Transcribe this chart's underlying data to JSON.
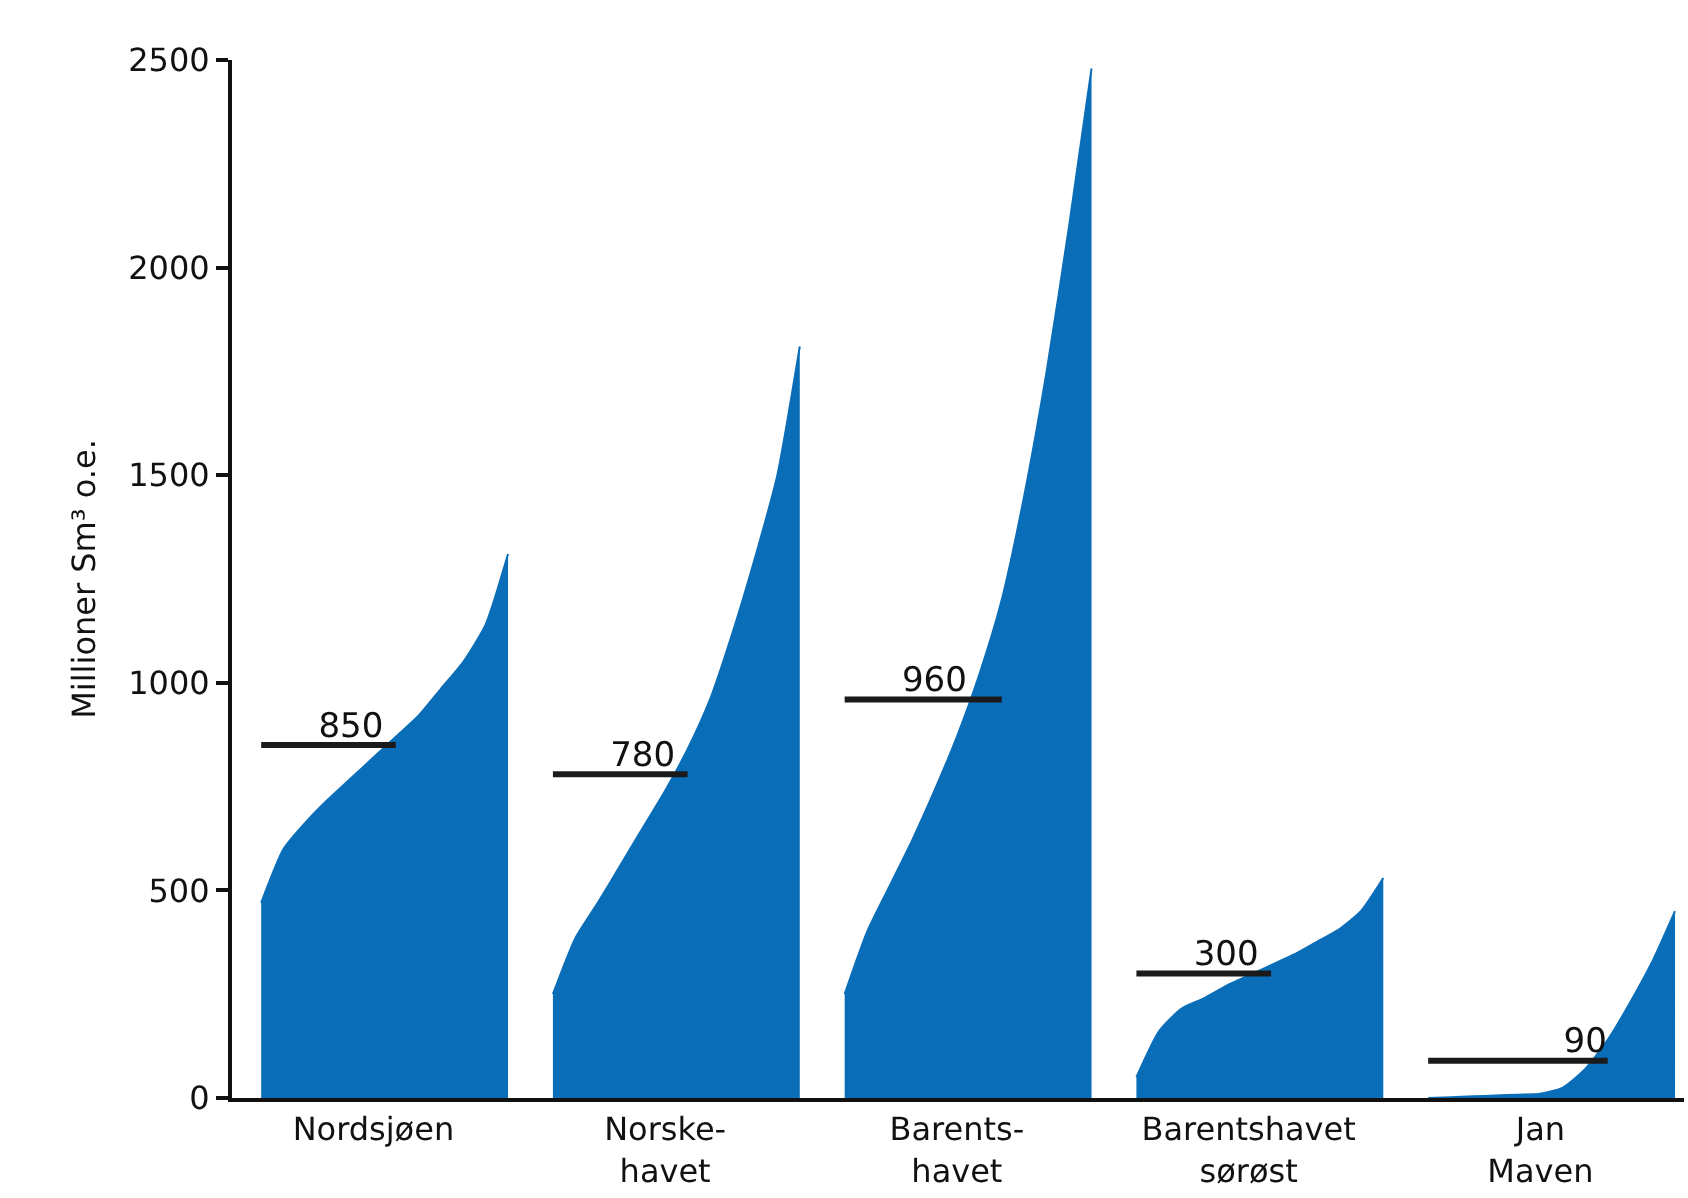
{
  "chart_data": {
    "type": "area",
    "ylabel": "Millioner Sm³ o.e.",
    "categories": [
      null,
      null,
      null,
      null,
      null,
      "Nordsjøen",
      null,
      null,
      null,
      null,
      null,
      null,
      null,
      null,
      null,
      null,
      null,
      null,
      "Norske-\nhavet",
      null,
      null,
      null,
      null,
      null,
      null,
      null,
      null,
      null,
      null,
      null,
      null,
      "Barents-\nhavet",
      null,
      null,
      null,
      null,
      null,
      null,
      null,
      null,
      null,
      null,
      null,
      null,
      "Barentshavet\nsørøst",
      null,
      null,
      null,
      null,
      null,
      null,
      null,
      null,
      null,
      null,
      null,
      null,
      "Jan\nMaven",
      null,
      null,
      null,
      null,
      null,
      null
    ],
    "ylim": [
      0,
      2500
    ],
    "yticks": [
      0,
      500,
      1000,
      1500,
      2000,
      2500
    ],
    "grid": false,
    "series": [
      {
        "color": "#0a6db8",
        "values": [
          470,
          600,
          665,
          720,
          770,
          820,
          870,
          920,
          985,
          1050,
          1140,
          1310,
          null,
          null,
          null,
          null,
          null,
          null,
          null,
          null,
          null,
          null,
          null,
          null,
          null,
          null,
          null,
          null,
          null,
          null,
          null,
          null,
          null,
          null,
          null,
          null,
          null,
          null,
          null,
          null,
          null,
          null,
          null,
          null,
          null,
          null,
          null,
          null,
          null,
          null,
          null,
          null,
          null,
          null,
          null,
          null,
          null,
          null,
          null,
          null,
          null,
          null,
          null,
          null
        ]
      },
      {
        "color": "#0a6db8",
        "values": [
          null,
          null,
          null,
          null,
          null,
          null,
          null,
          null,
          null,
          null,
          null,
          null,
          null,
          250,
          385,
          470,
          560,
          650,
          740,
          840,
          960,
          1120,
          1300,
          1500,
          1810,
          null,
          null,
          null,
          null,
          null,
          null,
          null,
          null,
          null,
          null,
          null,
          null,
          null,
          null,
          null,
          null,
          null,
          null,
          null,
          null,
          null,
          null,
          null,
          null,
          null,
          null,
          null,
          null,
          null,
          null,
          null,
          null,
          null,
          null,
          null,
          null,
          null,
          null,
          null
        ]
      },
      {
        "color": "#0a6db8",
        "values": [
          null,
          null,
          null,
          null,
          null,
          null,
          null,
          null,
          null,
          null,
          null,
          null,
          null,
          null,
          null,
          null,
          null,
          null,
          null,
          null,
          null,
          null,
          null,
          null,
          null,
          null,
          250,
          400,
          510,
          620,
          740,
          870,
          1020,
          1200,
          1450,
          1750,
          2100,
          2480,
          null,
          null,
          null,
          null,
          null,
          null,
          null,
          null,
          null,
          null,
          null,
          null,
          null,
          null,
          null,
          null,
          null,
          null,
          null,
          null,
          null,
          null,
          null,
          null,
          null,
          null
        ]
      },
      {
        "color": "#0a6db8",
        "values": [
          null,
          null,
          null,
          null,
          null,
          null,
          null,
          null,
          null,
          null,
          null,
          null,
          null,
          null,
          null,
          null,
          null,
          null,
          null,
          null,
          null,
          null,
          null,
          null,
          null,
          null,
          null,
          null,
          null,
          null,
          null,
          null,
          null,
          null,
          null,
          null,
          null,
          null,
          null,
          50,
          160,
          215,
          240,
          270,
          295,
          320,
          345,
          375,
          405,
          450,
          530,
          null,
          null,
          null,
          null,
          null,
          null,
          null,
          null,
          null,
          null,
          null,
          null,
          null
        ]
      },
      {
        "color": "#0a6db8",
        "values": [
          null,
          null,
          null,
          null,
          null,
          null,
          null,
          null,
          null,
          null,
          null,
          null,
          null,
          null,
          null,
          null,
          null,
          null,
          null,
          null,
          null,
          null,
          null,
          null,
          null,
          null,
          null,
          null,
          null,
          null,
          null,
          null,
          null,
          null,
          null,
          null,
          null,
          null,
          null,
          null,
          null,
          null,
          null,
          null,
          null,
          null,
          null,
          null,
          null,
          null,
          null,
          null,
          0,
          2,
          4,
          6,
          8,
          10,
          25,
          70,
          140,
          230,
          330,
          450
        ]
      },
      {
        "type": "line",
        "color": "#1a1a1a",
        "values": [
          850,
          850,
          850,
          850,
          850,
          850,
          850,
          null,
          null,
          null,
          null,
          null,
          null,
          null,
          null,
          null,
          null,
          null,
          null,
          null,
          null,
          null,
          null,
          null,
          null,
          null,
          null,
          null,
          null,
          null,
          null,
          null,
          null,
          null,
          null,
          null,
          null,
          null,
          null,
          null,
          null,
          null,
          null,
          null,
          null,
          null,
          null,
          null,
          null,
          null,
          null,
          null,
          null,
          null,
          null,
          null,
          null,
          null,
          null,
          null,
          null,
          null,
          null,
          null
        ],
        "value_labels": [
          null,
          null,
          null,
          null,
          "850",
          null,
          null,
          null,
          null,
          null,
          null,
          null,
          null,
          null,
          null,
          null,
          null,
          null,
          null,
          null,
          null,
          null,
          null,
          null,
          null,
          null,
          null,
          null,
          null,
          null,
          null,
          null,
          null,
          null,
          null,
          null,
          null,
          null,
          null,
          null,
          null,
          null,
          null,
          null,
          null,
          null,
          null,
          null,
          null,
          null,
          null,
          null,
          null,
          null,
          null,
          null,
          null,
          null,
          null,
          null,
          null,
          null,
          null,
          null
        ]
      },
      {
        "type": "line",
        "color": "#1a1a1a",
        "values": [
          null,
          null,
          null,
          null,
          null,
          null,
          null,
          null,
          null,
          null,
          null,
          null,
          null,
          780,
          780,
          780,
          780,
          780,
          780,
          780,
          null,
          null,
          null,
          null,
          null,
          null,
          null,
          null,
          null,
          null,
          null,
          null,
          null,
          null,
          null,
          null,
          null,
          null,
          null,
          null,
          null,
          null,
          null,
          null,
          null,
          null,
          null,
          null,
          null,
          null,
          null,
          null,
          null,
          null,
          null,
          null,
          null,
          null,
          null,
          null,
          null,
          null,
          null,
          null
        ],
        "value_labels": [
          null,
          null,
          null,
          null,
          null,
          null,
          null,
          null,
          null,
          null,
          null,
          null,
          null,
          null,
          null,
          null,
          null,
          "780",
          null,
          null,
          null,
          null,
          null,
          null,
          null,
          null,
          null,
          null,
          null,
          null,
          null,
          null,
          null,
          null,
          null,
          null,
          null,
          null,
          null,
          null,
          null,
          null,
          null,
          null,
          null,
          null,
          null,
          null,
          null,
          null,
          null,
          null,
          null,
          null,
          null,
          null,
          null,
          null,
          null,
          null,
          null,
          null,
          null,
          null
        ]
      },
      {
        "type": "line",
        "color": "#1a1a1a",
        "values": [
          null,
          null,
          null,
          null,
          null,
          null,
          null,
          null,
          null,
          null,
          null,
          null,
          null,
          null,
          null,
          null,
          null,
          null,
          null,
          null,
          null,
          null,
          null,
          null,
          null,
          null,
          960,
          960,
          960,
          960,
          960,
          960,
          960,
          960,
          null,
          null,
          null,
          null,
          null,
          null,
          null,
          null,
          null,
          null,
          null,
          null,
          null,
          null,
          null,
          null,
          null,
          null,
          null,
          null,
          null,
          null,
          null,
          null,
          null,
          null,
          null,
          null,
          null,
          null
        ],
        "value_labels": [
          null,
          null,
          null,
          null,
          null,
          null,
          null,
          null,
          null,
          null,
          null,
          null,
          null,
          null,
          null,
          null,
          null,
          null,
          null,
          null,
          null,
          null,
          null,
          null,
          null,
          null,
          null,
          null,
          null,
          null,
          "960",
          null,
          null,
          null,
          null,
          null,
          null,
          null,
          null,
          null,
          null,
          null,
          null,
          null,
          null,
          null,
          null,
          null,
          null,
          null,
          null,
          null,
          null,
          null,
          null,
          null,
          null,
          null,
          null,
          null,
          null,
          null,
          null,
          null
        ]
      },
      {
        "type": "line",
        "color": "#1a1a1a",
        "values": [
          null,
          null,
          null,
          null,
          null,
          null,
          null,
          null,
          null,
          null,
          null,
          null,
          null,
          null,
          null,
          null,
          null,
          null,
          null,
          null,
          null,
          null,
          null,
          null,
          null,
          null,
          null,
          null,
          null,
          null,
          null,
          null,
          null,
          null,
          null,
          null,
          null,
          null,
          null,
          300,
          300,
          300,
          300,
          300,
          300,
          300,
          null,
          null,
          null,
          null,
          null,
          null,
          null,
          null,
          null,
          null,
          null,
          null,
          null,
          null,
          null,
          null,
          null,
          null
        ],
        "value_labels": [
          null,
          null,
          null,
          null,
          null,
          null,
          null,
          null,
          null,
          null,
          null,
          null,
          null,
          null,
          null,
          null,
          null,
          null,
          null,
          null,
          null,
          null,
          null,
          null,
          null,
          null,
          null,
          null,
          null,
          null,
          null,
          null,
          null,
          null,
          null,
          null,
          null,
          null,
          null,
          null,
          null,
          null,
          null,
          "300",
          null,
          null,
          null,
          null,
          null,
          null,
          null,
          null,
          null,
          null,
          null,
          null,
          null,
          null,
          null,
          null,
          null,
          null,
          null,
          null
        ]
      },
      {
        "type": "line",
        "color": "#1a1a1a",
        "values": [
          null,
          null,
          null,
          null,
          null,
          null,
          null,
          null,
          null,
          null,
          null,
          null,
          null,
          null,
          null,
          null,
          null,
          null,
          null,
          null,
          null,
          null,
          null,
          null,
          null,
          null,
          null,
          null,
          null,
          null,
          null,
          null,
          null,
          null,
          null,
          null,
          null,
          null,
          null,
          null,
          null,
          null,
          null,
          null,
          null,
          null,
          null,
          null,
          null,
          null,
          null,
          null,
          90,
          90,
          90,
          90,
          90,
          90,
          90,
          90,
          90,
          null,
          null,
          null
        ],
        "value_labels": [
          null,
          null,
          null,
          null,
          null,
          null,
          null,
          null,
          null,
          null,
          null,
          null,
          null,
          null,
          null,
          null,
          null,
          null,
          null,
          null,
          null,
          null,
          null,
          null,
          null,
          null,
          null,
          null,
          null,
          null,
          null,
          null,
          null,
          null,
          null,
          null,
          null,
          null,
          null,
          null,
          null,
          null,
          null,
          null,
          null,
          null,
          null,
          null,
          null,
          null,
          null,
          null,
          null,
          null,
          null,
          null,
          null,
          null,
          null,
          "90",
          null,
          null,
          null,
          null
        ]
      }
    ]
  }
}
